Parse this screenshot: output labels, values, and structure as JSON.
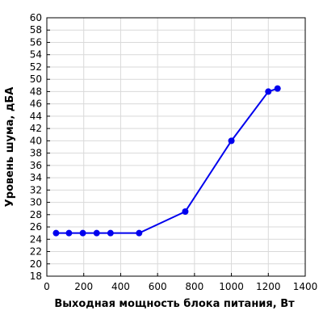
{
  "chart_data": {
    "type": "line",
    "title": "",
    "xlabel": "Выходная мощность блока питания, Вт",
    "ylabel": "Уровень шума, дБА",
    "xlim": [
      0,
      1400
    ],
    "ylim": [
      18,
      60
    ],
    "x_ticks": [
      0,
      200,
      400,
      600,
      800,
      1000,
      1200,
      1400
    ],
    "y_ticks": [
      18,
      20,
      22,
      24,
      26,
      28,
      30,
      32,
      34,
      36,
      38,
      40,
      42,
      44,
      46,
      48,
      50,
      52,
      54,
      56,
      58,
      60
    ],
    "grid": true,
    "legend": "none",
    "series": [
      {
        "color": "#0000ee",
        "x": [
          50,
          120,
          195,
          270,
          345,
          500,
          750,
          1000,
          1200,
          1250
        ],
        "y": [
          25,
          25,
          25,
          25,
          25,
          25,
          28.5,
          40,
          48,
          48.5
        ]
      }
    ]
  }
}
